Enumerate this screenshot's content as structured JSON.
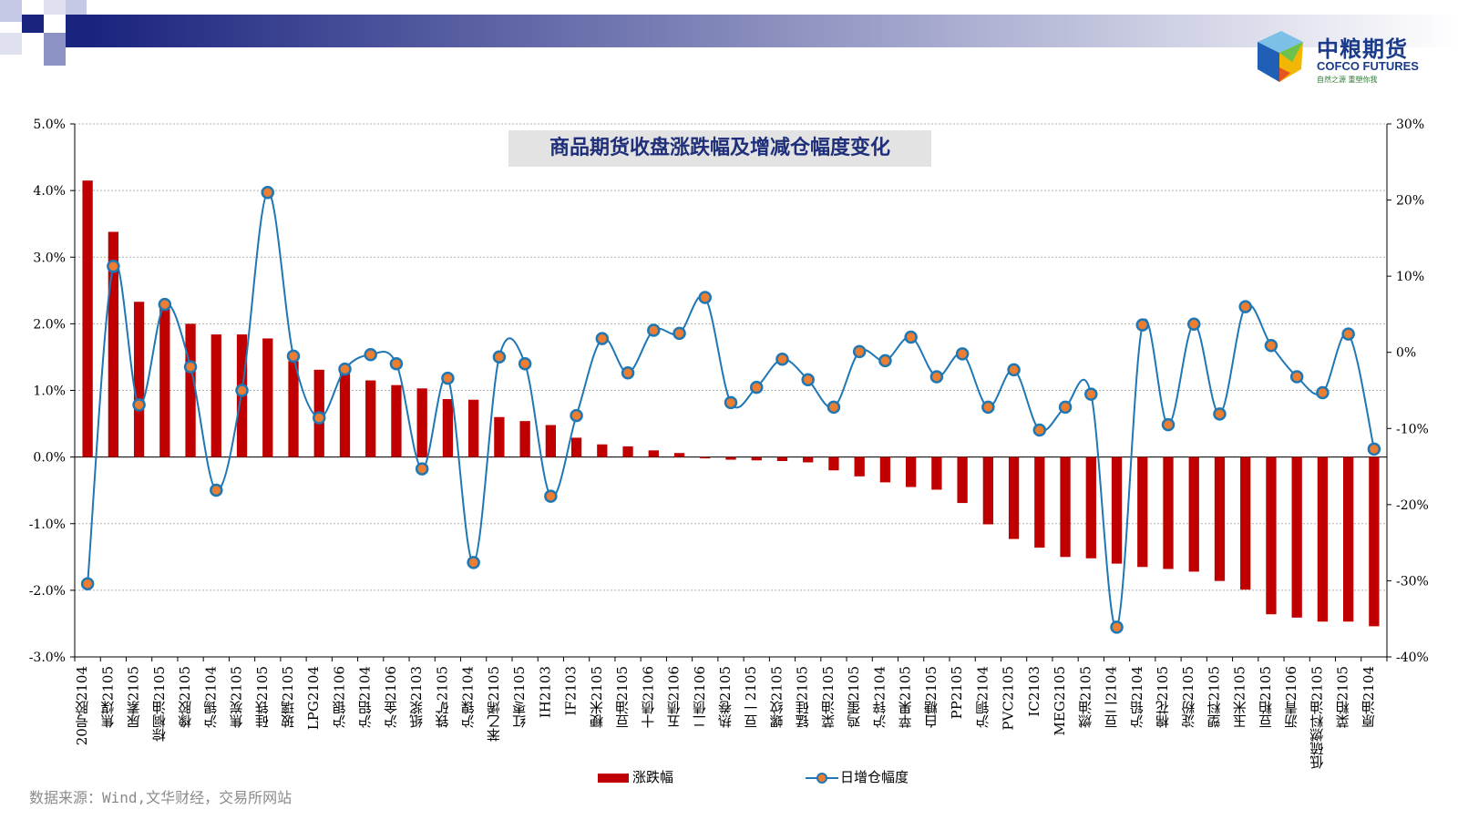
{
  "logo": {
    "name_cn": "中粮期货",
    "name_en": "COFCO FUTURES",
    "tagline": "自然之源  重塑你我"
  },
  "source_note": "数据来源：Wind,文华财经，交易所网站",
  "colors": {
    "bar": "#c00000",
    "line": "#1f77b4",
    "marker_fill": "#ed7d31",
    "title_text": "#1f2f7a",
    "header_dark": "#1a237e"
  },
  "legend": {
    "bar_label": "涨跌幅",
    "line_label": "日增仓幅度"
  },
  "chart_data": {
    "type": "bar",
    "combo": "bar+line (secondary axis)",
    "title": "商品期货收盘涨跌幅及增减仓幅度变化",
    "categories": [
      "20号胶2104",
      "焦煤2105",
      "尿素2105",
      "棕榈油2105",
      "橡胶2105",
      "沪锡2104",
      "焦炭2105",
      "硅铁2105",
      "玻璃2105",
      "LPG2104",
      "沪银2106",
      "沪铝2104",
      "沪金2106",
      "纸浆2103",
      "铁矿2105",
      "沪镍2104",
      "苯乙烯2105",
      "红枣2105",
      "IH2103",
      "IF2103",
      "粳米2105",
      "豆油2105",
      "十债2106",
      "五债2106",
      "二债2106",
      "热卷2105",
      "豆一2105",
      "螺纹2105",
      "锰硅2105",
      "菜油2105",
      "鸡蛋2105",
      "沪锌2104",
      "苹果2105",
      "白糖2105",
      "PP2105",
      "沪铜2104",
      "PVC2105",
      "IC2103",
      "MEG2105",
      "燃油2105",
      "豆二2104",
      "沪铅2104",
      "棉花2105",
      "淀粉2105",
      "塑料2105",
      "玉米2105",
      "豆粕2105",
      "沥青2106",
      "低硫燃料油2105",
      "菜粕2105",
      "原油2104"
    ],
    "series": [
      {
        "name": "涨跌幅",
        "type": "bar",
        "axis": "left",
        "unit": "%",
        "values": [
          4.15,
          3.38,
          2.33,
          2.3,
          2.0,
          1.84,
          1.84,
          1.78,
          1.44,
          1.31,
          1.3,
          1.15,
          1.08,
          1.03,
          0.87,
          0.86,
          0.6,
          0.54,
          0.48,
          0.29,
          0.19,
          0.16,
          0.1,
          0.06,
          -0.02,
          -0.04,
          -0.05,
          -0.06,
          -0.08,
          -0.2,
          -0.29,
          -0.38,
          -0.45,
          -0.49,
          -0.69,
          -1.01,
          -1.23,
          -1.36,
          -1.5,
          -1.52,
          -1.6,
          -1.65,
          -1.68,
          -1.72,
          -1.86,
          -1.99,
          -2.36,
          -2.41,
          -2.47,
          -2.47,
          -2.54
        ]
      },
      {
        "name": "日增仓幅度",
        "type": "line",
        "axis": "right",
        "unit": "%",
        "values": [
          -30.4,
          11.3,
          -6.9,
          6.3,
          -1.9,
          -18.1,
          -5.0,
          21.0,
          -0.5,
          -8.6,
          -2.2,
          -0.3,
          -1.5,
          -15.3,
          -3.4,
          -27.6,
          -0.6,
          -1.5,
          -18.9,
          -8.3,
          1.8,
          -2.7,
          2.9,
          2.5,
          7.2,
          -6.6,
          -4.6,
          -0.9,
          -3.6,
          -7.2,
          0.1,
          -1.1,
          2.0,
          -3.2,
          -0.2,
          -7.2,
          -2.3,
          -10.2,
          -7.2,
          -5.5,
          -36.1,
          3.6,
          -9.5,
          3.7,
          -8.1,
          6.0,
          0.9,
          -3.2,
          -5.3,
          2.4,
          -12.7
        ]
      }
    ],
    "y_left": {
      "min": -3.0,
      "max": 5.0,
      "step": 1.0,
      "tick_labels": [
        "-3.0%",
        "-2.0%",
        "-1.0%",
        "0.0%",
        "1.0%",
        "2.0%",
        "3.0%",
        "4.0%",
        "5.0%"
      ]
    },
    "y_right": {
      "min": -40,
      "max": 30,
      "step": 10,
      "tick_labels": [
        "-40%",
        "-30%",
        "-20%",
        "-10%",
        "0%",
        "10%",
        "20%",
        "30%"
      ]
    },
    "grid": "horizontal dotted",
    "legend_position": "bottom"
  }
}
